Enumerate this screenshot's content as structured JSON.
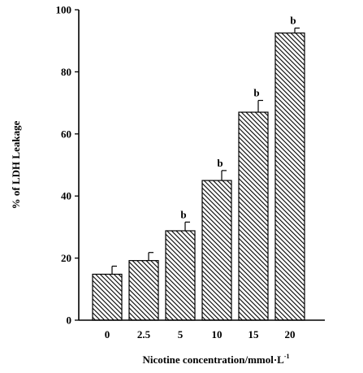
{
  "chart_data": {
    "type": "bar",
    "xlabel": "Nicotine concentration/mmol·L",
    "xlabel_superscript": "-1",
    "ylabel": "% of LDH Leakage",
    "categories": [
      "0",
      "2.5",
      "5",
      "10",
      "15",
      "20"
    ],
    "values": [
      14.8,
      19.2,
      28.8,
      45.0,
      67.0,
      92.5
    ],
    "errors": [
      2.6,
      2.6,
      2.8,
      3.2,
      3.8,
      1.6
    ],
    "annotations": [
      "",
      "",
      "b",
      "b",
      "b",
      "b"
    ],
    "ylim": [
      0,
      100
    ],
    "yticks": [
      "0",
      "20",
      "40",
      "60",
      "80",
      "100"
    ],
    "fill_pattern": "diagonal-hatch",
    "grid": false
  }
}
